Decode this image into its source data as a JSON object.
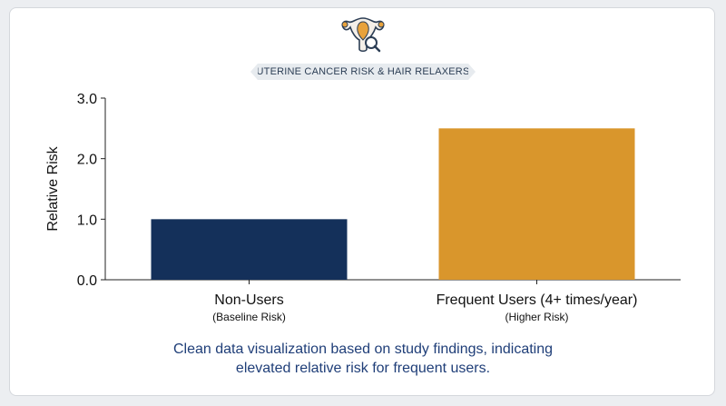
{
  "chart_data": {
    "type": "bar",
    "title": "UTERINE CANCER RISK & HAIR RELAXERS",
    "categories": [
      "Non-Users",
      "Frequent Users (4+ times/year)"
    ],
    "category_sublabels": [
      "(Baseline Risk)",
      "(Higher Risk)"
    ],
    "values": [
      1.0,
      2.5
    ],
    "colors": [
      "#14305a",
      "#d9962c"
    ],
    "ylabel": "Relative Risk",
    "xlabel": "",
    "ylim": [
      0,
      3
    ],
    "yticks": [
      "0.0",
      "1.0",
      "2.0",
      "3.0"
    ],
    "grid": false
  },
  "header": {
    "icon": "uterus-magnifier-icon"
  },
  "caption": {
    "line1": "Clean data visualization based on study findings, indicating",
    "line2": "elevated relative risk for frequent users."
  }
}
